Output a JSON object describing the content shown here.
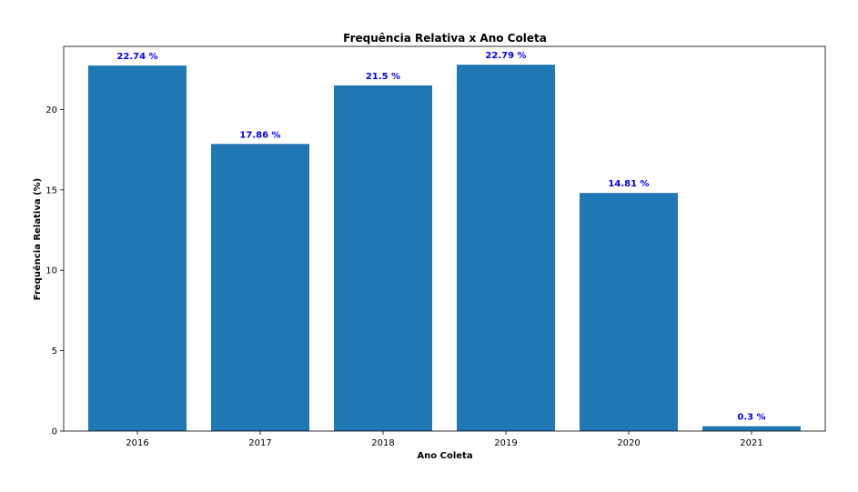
{
  "chart_data": {
    "type": "bar",
    "title": "Frequência Relativa x Ano Coleta",
    "xlabel": "Ano Coleta",
    "ylabel": "Frequência Relativa (%)",
    "categories": [
      "2016",
      "2017",
      "2018",
      "2019",
      "2020",
      "2021"
    ],
    "values": [
      22.74,
      17.86,
      21.5,
      22.79,
      14.81,
      0.3
    ],
    "data_labels": [
      "22.74 %",
      "17.86 %",
      "21.5 %",
      "22.79 %",
      "14.81 %",
      "0.3 %"
    ],
    "ylim": [
      0,
      23.93
    ],
    "yticks": [
      0,
      5,
      10,
      15,
      20
    ],
    "ytick_labels": [
      "0",
      "5",
      "10",
      "15",
      "20"
    ],
    "grid": false,
    "legend": "none",
    "colors": {
      "bar": "#1f77b4",
      "data_label": "#0000ff",
      "axis": "#000000"
    }
  }
}
